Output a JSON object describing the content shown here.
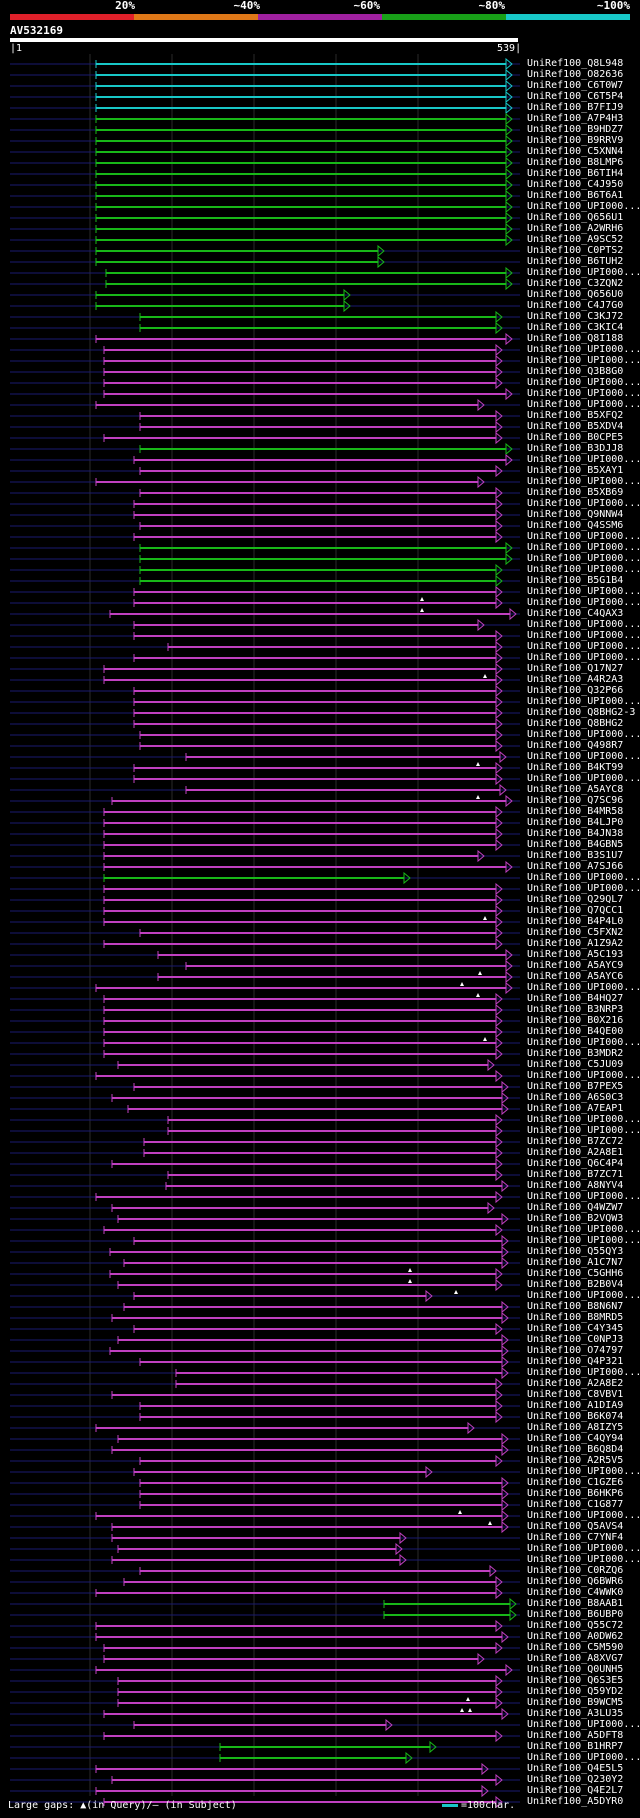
{
  "legend": {
    "percent_labels": [
      "20%",
      "~40%",
      "~60%",
      "~80%",
      "~100%"
    ],
    "colors": [
      "#e0202a",
      "#e07818",
      "#a020a0",
      "#18a018",
      "#18c8c8"
    ]
  },
  "query": {
    "name": "AV532169",
    "start": "1",
    "end": "539"
  },
  "colors": {
    "cyan": "#18c8c8",
    "green": "#18b818",
    "magenta": "#c040c0",
    "dim": "#1a1a70"
  },
  "hits": [
    {
      "id": "UniRef100_Q8L948",
      "s": 96,
      "e": 512,
      "c": "cyan"
    },
    {
      "id": "UniRef100_O82636",
      "s": 96,
      "e": 512,
      "c": "cyan"
    },
    {
      "id": "UniRef100_C6T0W7",
      "s": 96,
      "e": 512,
      "c": "cyan"
    },
    {
      "id": "UniRef100_C6T5P4",
      "s": 96,
      "e": 512,
      "c": "cyan"
    },
    {
      "id": "UniRef100_B7FIJ9",
      "s": 96,
      "e": 512,
      "c": "cyan"
    },
    {
      "id": "UniRef100_A7P4H3",
      "s": 96,
      "e": 512,
      "c": "green"
    },
    {
      "id": "UniRef100_B9HDZ7",
      "s": 96,
      "e": 512,
      "c": "green"
    },
    {
      "id": "UniRef100_B9RRV9",
      "s": 96,
      "e": 512,
      "c": "green"
    },
    {
      "id": "UniRef100_C5XNN4",
      "s": 96,
      "e": 512,
      "c": "green"
    },
    {
      "id": "UniRef100_B8LMP6",
      "s": 96,
      "e": 512,
      "c": "green"
    },
    {
      "id": "UniRef100_B6TIH4",
      "s": 96,
      "e": 512,
      "c": "green"
    },
    {
      "id": "UniRef100_C4J950",
      "s": 96,
      "e": 512,
      "c": "green"
    },
    {
      "id": "UniRef100_B6T6A1",
      "s": 96,
      "e": 512,
      "c": "green"
    },
    {
      "id": "UniRef100_UPI000...",
      "s": 96,
      "e": 512,
      "c": "green"
    },
    {
      "id": "UniRef100_Q656U1",
      "s": 96,
      "e": 512,
      "c": "green"
    },
    {
      "id": "UniRef100_A2WRH6",
      "s": 96,
      "e": 512,
      "c": "green"
    },
    {
      "id": "UniRef100_A9SC52",
      "s": 96,
      "e": 512,
      "c": "green"
    },
    {
      "id": "UniRef100_C0PTS2",
      "s": 96,
      "e": 384,
      "c": "green"
    },
    {
      "id": "UniRef100_B6TUH2",
      "s": 96,
      "e": 384,
      "c": "green"
    },
    {
      "id": "UniRef100_UPI000...",
      "s": 106,
      "e": 512,
      "c": "green"
    },
    {
      "id": "UniRef100_C3ZQN2",
      "s": 106,
      "e": 512,
      "c": "green"
    },
    {
      "id": "UniRef100_Q656U0",
      "s": 96,
      "e": 350,
      "c": "green"
    },
    {
      "id": "UniRef100_C4J7G0",
      "s": 96,
      "e": 350,
      "c": "green"
    },
    {
      "id": "UniRef100_C3KJ72",
      "s": 140,
      "e": 502,
      "c": "green"
    },
    {
      "id": "UniRef100_C3KIC4",
      "s": 140,
      "e": 502,
      "c": "green"
    },
    {
      "id": "UniRef100_Q8I188",
      "s": 96,
      "e": 512,
      "c": "magenta"
    },
    {
      "id": "UniRef100_UPI000...",
      "s": 104,
      "e": 502,
      "c": "magenta"
    },
    {
      "id": "UniRef100_UPI000...",
      "s": 104,
      "e": 502,
      "c": "magenta"
    },
    {
      "id": "UniRef100_Q3B8G0",
      "s": 104,
      "e": 502,
      "c": "magenta"
    },
    {
      "id": "UniRef100_UPI000...",
      "s": 104,
      "e": 502,
      "c": "magenta"
    },
    {
      "id": "UniRef100_UPI000...",
      "s": 104,
      "e": 512,
      "c": "magenta"
    },
    {
      "id": "UniRef100_UPI000...",
      "s": 96,
      "e": 484,
      "c": "magenta"
    },
    {
      "id": "UniRef100_B5XFQ2",
      "s": 140,
      "e": 502,
      "c": "magenta"
    },
    {
      "id": "UniRef100_B5XDV4",
      "s": 140,
      "e": 502,
      "c": "magenta"
    },
    {
      "id": "UniRef100_B0CPE5",
      "s": 104,
      "e": 502,
      "c": "magenta"
    },
    {
      "id": "UniRef100_B3DJJ8",
      "s": 140,
      "e": 512,
      "c": "green"
    },
    {
      "id": "UniRef100_UPI000...",
      "s": 134,
      "e": 512,
      "c": "magenta"
    },
    {
      "id": "UniRef100_B5XAY1",
      "s": 140,
      "e": 502,
      "c": "magenta"
    },
    {
      "id": "UniRef100_UPI000...",
      "s": 96,
      "e": 484,
      "c": "magenta"
    },
    {
      "id": "UniRef100_B5XB69",
      "s": 140,
      "e": 502,
      "c": "magenta"
    },
    {
      "id": "UniRef100_UPI000...",
      "s": 134,
      "e": 502,
      "c": "magenta"
    },
    {
      "id": "UniRef100_Q9NNW4",
      "s": 134,
      "e": 502,
      "c": "magenta"
    },
    {
      "id": "UniRef100_Q4SSM6",
      "s": 140,
      "e": 502,
      "c": "magenta"
    },
    {
      "id": "UniRef100_UPI000...",
      "s": 134,
      "e": 502,
      "c": "magenta"
    },
    {
      "id": "UniRef100_UPI000...",
      "s": 140,
      "e": 512,
      "c": "green"
    },
    {
      "id": "UniRef100_UPI000...",
      "s": 140,
      "e": 512,
      "c": "green"
    },
    {
      "id": "UniRef100_UPI000...",
      "s": 140,
      "e": 502,
      "c": "green"
    },
    {
      "id": "UniRef100_B5G1B4",
      "s": 140,
      "e": 502,
      "c": "green"
    },
    {
      "id": "UniRef100_UPI000...",
      "s": 134,
      "e": 502,
      "c": "magenta"
    },
    {
      "id": "UniRef100_UPI000...",
      "s": 134,
      "e": 502,
      "c": "magenta"
    },
    {
      "id": "UniRef100_C4QAX3",
      "s": 110,
      "e": 516,
      "c": "magenta"
    },
    {
      "id": "UniRef100_UPI000...",
      "s": 134,
      "e": 484,
      "c": "magenta"
    },
    {
      "id": "UniRef100_UPI000...",
      "s": 134,
      "e": 502,
      "c": "magenta"
    },
    {
      "id": "UniRef100_UPI000...",
      "s": 168,
      "e": 502,
      "c": "magenta"
    },
    {
      "id": "UniRef100_UPI000...",
      "s": 134,
      "e": 502,
      "c": "magenta"
    },
    {
      "id": "UniRef100_Q17N27",
      "s": 104,
      "e": 502,
      "c": "magenta"
    },
    {
      "id": "UniRef100_A4R2A3",
      "s": 104,
      "e": 502,
      "c": "magenta"
    },
    {
      "id": "UniRef100_Q32P66",
      "s": 134,
      "e": 502,
      "c": "magenta"
    },
    {
      "id": "UniRef100_UPI000...",
      "s": 134,
      "e": 502,
      "c": "magenta"
    },
    {
      "id": "UniRef100_Q8BHG2-3",
      "s": 134,
      "e": 502,
      "c": "magenta"
    },
    {
      "id": "UniRef100_Q8BHG2",
      "s": 134,
      "e": 502,
      "c": "magenta"
    },
    {
      "id": "UniRef100_UPI000...",
      "s": 140,
      "e": 502,
      "c": "magenta"
    },
    {
      "id": "UniRef100_Q498R7",
      "s": 140,
      "e": 502,
      "c": "magenta"
    },
    {
      "id": "UniRef100_UPI000...",
      "s": 186,
      "e": 506,
      "c": "magenta"
    },
    {
      "id": "UniRef100_B4KT99",
      "s": 134,
      "e": 502,
      "c": "magenta"
    },
    {
      "id": "UniRef100_UPI000...",
      "s": 134,
      "e": 502,
      "c": "magenta"
    },
    {
      "id": "UniRef100_A5AYC8",
      "s": 186,
      "e": 506,
      "c": "magenta"
    },
    {
      "id": "UniRef100_Q7SC96",
      "s": 112,
      "e": 512,
      "c": "magenta"
    },
    {
      "id": "UniRef100_B4MR58",
      "s": 104,
      "e": 502,
      "c": "magenta"
    },
    {
      "id": "UniRef100_B4LJP0",
      "s": 104,
      "e": 502,
      "c": "magenta"
    },
    {
      "id": "UniRef100_B4JN38",
      "s": 104,
      "e": 502,
      "c": "magenta"
    },
    {
      "id": "UniRef100_B4GBN5",
      "s": 104,
      "e": 502,
      "c": "magenta"
    },
    {
      "id": "UniRef100_B3S1U7",
      "s": 104,
      "e": 484,
      "c": "magenta"
    },
    {
      "id": "UniRef100_A7SJ66",
      "s": 104,
      "e": 512,
      "c": "magenta"
    },
    {
      "id": "UniRef100_UPI000...",
      "s": 104,
      "e": 410,
      "c": "green"
    },
    {
      "id": "UniRef100_UPI000...",
      "s": 104,
      "e": 502,
      "c": "magenta"
    },
    {
      "id": "UniRef100_Q29QL7",
      "s": 104,
      "e": 502,
      "c": "magenta"
    },
    {
      "id": "UniRef100_Q7QCC1",
      "s": 104,
      "e": 502,
      "c": "magenta"
    },
    {
      "id": "UniRef100_B4P4L0",
      "s": 104,
      "e": 502,
      "c": "magenta"
    },
    {
      "id": "UniRef100_C5FXN2",
      "s": 140,
      "e": 502,
      "c": "magenta"
    },
    {
      "id": "UniRef100_A1Z9A2",
      "s": 104,
      "e": 502,
      "c": "magenta"
    },
    {
      "id": "UniRef100_A5C193",
      "s": 158,
      "e": 512,
      "c": "magenta"
    },
    {
      "id": "UniRef100_A5AYC9",
      "s": 186,
      "e": 512,
      "c": "magenta"
    },
    {
      "id": "UniRef100_A5AYC6",
      "s": 158,
      "e": 512,
      "c": "magenta"
    },
    {
      "id": "UniRef100_UPI000...",
      "s": 96,
      "e": 512,
      "c": "magenta"
    },
    {
      "id": "UniRef100_B4HQ27",
      "s": 104,
      "e": 502,
      "c": "magenta"
    },
    {
      "id": "UniRef100_B3NRP3",
      "s": 104,
      "e": 502,
      "c": "magenta"
    },
    {
      "id": "UniRef100_B0X216",
      "s": 104,
      "e": 502,
      "c": "magenta"
    },
    {
      "id": "UniRef100_B4QE00",
      "s": 104,
      "e": 502,
      "c": "magenta"
    },
    {
      "id": "UniRef100_UPI000...",
      "s": 104,
      "e": 502,
      "c": "magenta"
    },
    {
      "id": "UniRef100_B3MDR2",
      "s": 104,
      "e": 502,
      "c": "magenta"
    },
    {
      "id": "UniRef100_C5JU09",
      "s": 118,
      "e": 494,
      "c": "magenta"
    },
    {
      "id": "UniRef100_UPI000...",
      "s": 96,
      "e": 502,
      "c": "magenta"
    },
    {
      "id": "UniRef100_B7PEX5",
      "s": 134,
      "e": 508,
      "c": "magenta"
    },
    {
      "id": "UniRef100_A6S0C3",
      "s": 112,
      "e": 508,
      "c": "magenta"
    },
    {
      "id": "UniRef100_A7EAP1",
      "s": 128,
      "e": 508,
      "c": "magenta"
    },
    {
      "id": "UniRef100_UPI000...",
      "s": 168,
      "e": 502,
      "c": "magenta"
    },
    {
      "id": "UniRef100_UPI000...",
      "s": 168,
      "e": 502,
      "c": "magenta"
    },
    {
      "id": "UniRef100_B7ZC72",
      "s": 144,
      "e": 502,
      "c": "magenta"
    },
    {
      "id": "UniRef100_A2A8E1",
      "s": 144,
      "e": 502,
      "c": "magenta"
    },
    {
      "id": "UniRef100_Q6C4P4",
      "s": 112,
      "e": 502,
      "c": "magenta"
    },
    {
      "id": "UniRef100_B7ZC71",
      "s": 168,
      "e": 502,
      "c": "magenta"
    },
    {
      "id": "UniRef100_A8NYV4",
      "s": 166,
      "e": 508,
      "c": "magenta"
    },
    {
      "id": "UniRef100_UPI000...",
      "s": 96,
      "e": 502,
      "c": "magenta"
    },
    {
      "id": "UniRef100_Q4WZW7",
      "s": 112,
      "e": 494,
      "c": "magenta"
    },
    {
      "id": "UniRef100_B2VQW3",
      "s": 118,
      "e": 508,
      "c": "magenta"
    },
    {
      "id": "UniRef100_UPI000...",
      "s": 104,
      "e": 502,
      "c": "magenta"
    },
    {
      "id": "UniRef100_UPI000...",
      "s": 134,
      "e": 508,
      "c": "magenta"
    },
    {
      "id": "UniRef100_Q55QY3",
      "s": 110,
      "e": 508,
      "c": "magenta"
    },
    {
      "id": "UniRef100_A1C7N7",
      "s": 124,
      "e": 508,
      "c": "magenta"
    },
    {
      "id": "UniRef100_C5GHH6",
      "s": 110,
      "e": 502,
      "c": "magenta"
    },
    {
      "id": "UniRef100_B2B0V4",
      "s": 118,
      "e": 502,
      "c": "magenta"
    },
    {
      "id": "UniRef100_UPI000...",
      "s": 134,
      "e": 432,
      "c": "magenta"
    },
    {
      "id": "UniRef100_B8N6N7",
      "s": 124,
      "e": 508,
      "c": "magenta"
    },
    {
      "id": "UniRef100_B8MRD5",
      "s": 112,
      "e": 508,
      "c": "magenta"
    },
    {
      "id": "UniRef100_C4Y345",
      "s": 134,
      "e": 502,
      "c": "magenta"
    },
    {
      "id": "UniRef100_C0NPJ3",
      "s": 118,
      "e": 508,
      "c": "magenta"
    },
    {
      "id": "UniRef100_O74797",
      "s": 110,
      "e": 508,
      "c": "magenta"
    },
    {
      "id": "UniRef100_Q4P321",
      "s": 140,
      "e": 508,
      "c": "magenta"
    },
    {
      "id": "UniRef100_UPI000...",
      "s": 176,
      "e": 508,
      "c": "magenta"
    },
    {
      "id": "UniRef100_A2A8E2",
      "s": 176,
      "e": 502,
      "c": "magenta"
    },
    {
      "id": "UniRef100_C8VBV1",
      "s": 112,
      "e": 502,
      "c": "magenta"
    },
    {
      "id": "UniRef100_A1DIA9",
      "s": 140,
      "e": 502,
      "c": "magenta"
    },
    {
      "id": "UniRef100_B6K074",
      "s": 140,
      "e": 502,
      "c": "magenta"
    },
    {
      "id": "UniRef100_A8IZY5",
      "s": 96,
      "e": 474,
      "c": "magenta"
    },
    {
      "id": "UniRef100_C4QY94",
      "s": 118,
      "e": 508,
      "c": "magenta"
    },
    {
      "id": "UniRef100_B6Q8D4",
      "s": 112,
      "e": 508,
      "c": "magenta"
    },
    {
      "id": "UniRef100_A2R5V5",
      "s": 140,
      "e": 502,
      "c": "magenta"
    },
    {
      "id": "UniRef100_UPI000...",
      "s": 134,
      "e": 432,
      "c": "magenta"
    },
    {
      "id": "UniRef100_C1GZE6",
      "s": 140,
      "e": 508,
      "c": "magenta"
    },
    {
      "id": "UniRef100_B6HKP6",
      "s": 140,
      "e": 508,
      "c": "magenta"
    },
    {
      "id": "UniRef100_C1G877",
      "s": 140,
      "e": 508,
      "c": "magenta"
    },
    {
      "id": "UniRef100_UPI000...",
      "s": 96,
      "e": 508,
      "c": "magenta"
    },
    {
      "id": "UniRef100_Q5AVS4",
      "s": 112,
      "e": 508,
      "c": "magenta"
    },
    {
      "id": "UniRef100_C7YNF4",
      "s": 112,
      "e": 406,
      "c": "magenta"
    },
    {
      "id": "UniRef100_UPI000...",
      "s": 118,
      "e": 402,
      "c": "magenta"
    },
    {
      "id": "UniRef100_UPI000...",
      "s": 112,
      "e": 406,
      "c": "magenta"
    },
    {
      "id": "UniRef100_C0RZQ6",
      "s": 140,
      "e": 496,
      "c": "magenta"
    },
    {
      "id": "UniRef100_Q6BWR6",
      "s": 124,
      "e": 502,
      "c": "magenta"
    },
    {
      "id": "UniRef100_C4WWK0",
      "s": 96,
      "e": 502,
      "c": "magenta"
    },
    {
      "id": "UniRef100_B8AAB1",
      "s": 384,
      "e": 516,
      "c": "green"
    },
    {
      "id": "UniRef100_B6UBP0",
      "s": 384,
      "e": 516,
      "c": "green"
    },
    {
      "id": "UniRef100_Q55C72",
      "s": 96,
      "e": 502,
      "c": "magenta"
    },
    {
      "id": "UniRef100_A0DW62",
      "s": 96,
      "e": 508,
      "c": "magenta"
    },
    {
      "id": "UniRef100_C5M590",
      "s": 104,
      "e": 502,
      "c": "magenta"
    },
    {
      "id": "UniRef100_A8XVG7",
      "s": 104,
      "e": 484,
      "c": "magenta"
    },
    {
      "id": "UniRef100_Q0UNH5",
      "s": 96,
      "e": 512,
      "c": "magenta"
    },
    {
      "id": "UniRef100_Q6S3E5",
      "s": 118,
      "e": 502,
      "c": "magenta"
    },
    {
      "id": "UniRef100_Q59YD2",
      "s": 118,
      "e": 502,
      "c": "magenta"
    },
    {
      "id": "UniRef100_B9WCM5",
      "s": 118,
      "e": 502,
      "c": "magenta"
    },
    {
      "id": "UniRef100_A3LU35",
      "s": 104,
      "e": 508,
      "c": "magenta"
    },
    {
      "id": "UniRef100_UPI000...",
      "s": 134,
      "e": 392,
      "c": "magenta"
    },
    {
      "id": "UniRef100_A5DFT8",
      "s": 104,
      "e": 502,
      "c": "magenta"
    },
    {
      "id": "UniRef100_B1HRP7",
      "s": 220,
      "e": 436,
      "c": "green"
    },
    {
      "id": "UniRef100_UPI000...",
      "s": 220,
      "e": 412,
      "c": "green"
    },
    {
      "id": "UniRef100_Q4E5L5",
      "s": 96,
      "e": 488,
      "c": "magenta"
    },
    {
      "id": "UniRef100_Q230Y2",
      "s": 112,
      "e": 502,
      "c": "magenta"
    },
    {
      "id": "UniRef100_Q4E2L7",
      "s": 96,
      "e": 488,
      "c": "magenta"
    },
    {
      "id": "UniRef100_A5DYR0",
      "s": 104,
      "e": 502,
      "c": "magenta"
    }
  ],
  "gaps": [
    {
      "row": 49,
      "x": 422
    },
    {
      "row": 50,
      "x": 422
    },
    {
      "row": 56,
      "x": 485
    },
    {
      "row": 64,
      "x": 478
    },
    {
      "row": 67,
      "x": 478
    },
    {
      "row": 78,
      "x": 485
    },
    {
      "row": 83,
      "x": 480
    },
    {
      "row": 84,
      "x": 462
    },
    {
      "row": 85,
      "x": 478
    },
    {
      "row": 89,
      "x": 485
    },
    {
      "row": 110,
      "x": 410
    },
    {
      "row": 111,
      "x": 410
    },
    {
      "row": 112,
      "x": 456
    },
    {
      "row": 132,
      "x": 460
    },
    {
      "row": 133,
      "x": 490
    },
    {
      "row": 149,
      "x": 468
    },
    {
      "row": 150,
      "x": 462
    },
    {
      "row": 150,
      "x": 470
    }
  ],
  "footer": {
    "left": "Large gaps: ▲(in Query)/‒ (in Subject)",
    "right": "=100char."
  }
}
